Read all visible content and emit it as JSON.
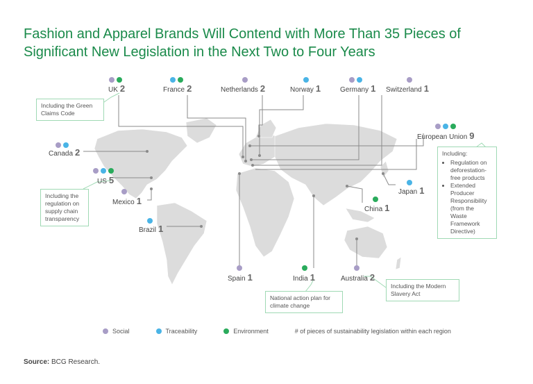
{
  "title": "Fashion and Apparel Brands Will Contend with More Than 35 Pieces of Significant New Legislation in the Next Two to Four Years",
  "colors": {
    "social": "#a89dc6",
    "traceability": "#4ab4e6",
    "environment": "#2aab5c",
    "title": "#1a8a4a",
    "callout_border": "#9fd9b4"
  },
  "regions": [
    {
      "id": "uk",
      "name": "UK",
      "count": "2",
      "dots": [
        "social",
        "environment"
      ]
    },
    {
      "id": "france",
      "name": "France",
      "count": "2",
      "dots": [
        "traceability",
        "environment"
      ]
    },
    {
      "id": "netherlands",
      "name": "Netherlands",
      "count": "2",
      "dots": [
        "social"
      ]
    },
    {
      "id": "norway",
      "name": "Norway",
      "count": "1",
      "dots": [
        "traceability"
      ]
    },
    {
      "id": "germany",
      "name": "Germany",
      "count": "1",
      "dots": [
        "social",
        "traceability"
      ]
    },
    {
      "id": "switzerland",
      "name": "Switzerland",
      "count": "1",
      "dots": [
        "social"
      ]
    },
    {
      "id": "eu",
      "name": "European Union",
      "count": "9",
      "dots": [
        "social",
        "traceability",
        "environment"
      ]
    },
    {
      "id": "canada",
      "name": "Canada",
      "count": "2",
      "dots": [
        "social",
        "traceability"
      ]
    },
    {
      "id": "us",
      "name": "US",
      "count": "5",
      "dots": [
        "social",
        "traceability",
        "environment"
      ]
    },
    {
      "id": "mexico",
      "name": "Mexico",
      "count": "1",
      "dots": [
        "social"
      ]
    },
    {
      "id": "brazil",
      "name": "Brazil",
      "count": "1",
      "dots": [
        "traceability"
      ]
    },
    {
      "id": "japan",
      "name": "Japan",
      "count": "1",
      "dots": [
        "traceability"
      ]
    },
    {
      "id": "china",
      "name": "China",
      "count": "1",
      "dots": [
        "environment"
      ]
    },
    {
      "id": "spain",
      "name": "Spain",
      "count": "1",
      "dots": [
        "social"
      ]
    },
    {
      "id": "india",
      "name": "India",
      "count": "1",
      "dots": [
        "environment"
      ]
    },
    {
      "id": "australia",
      "name": "Australia",
      "count": "2",
      "dots": [
        "social"
      ]
    }
  ],
  "callouts": {
    "uk": "Including the Green Claims Code",
    "us": "Including the regulation on supply chain transparency",
    "eu_intro": "Including:",
    "eu_items": [
      "Regulation on deforestation-free products",
      "Extended Producer Responsibility (from the Waste Framework Directive)"
    ],
    "india": "National action plan for climate change",
    "australia": "Including the Modern Slavery Act"
  },
  "legend": {
    "social": "Social",
    "traceability": "Traceability",
    "environment": "Environment",
    "count_note": "# of pieces of sustainability legislation within each region"
  },
  "source": {
    "label": "Source:",
    "text": "BCG Research."
  }
}
